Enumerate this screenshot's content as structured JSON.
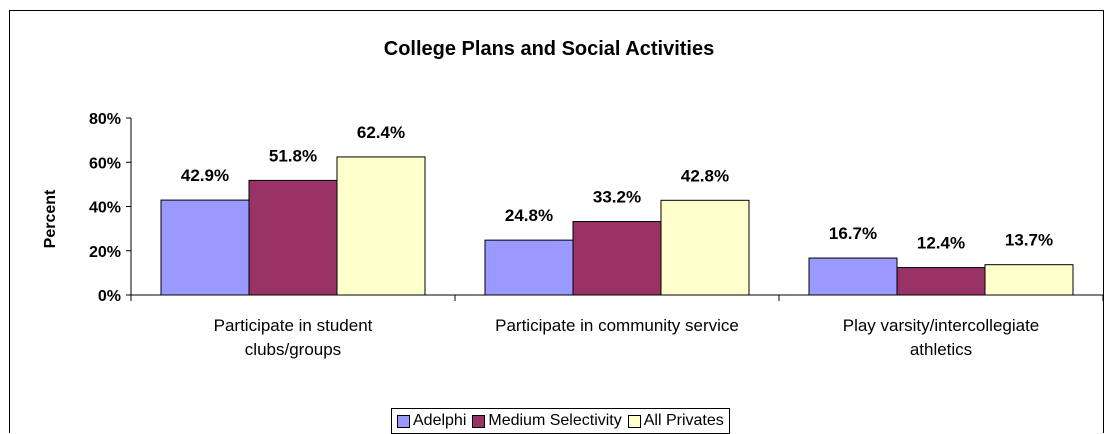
{
  "chart_data": {
    "type": "bar",
    "title": "College Plans and Social Activities",
    "ylabel": "Percent",
    "xlabel": "",
    "ylim": [
      0,
      80
    ],
    "yticks": [
      "0%",
      "20%",
      "40%",
      "60%",
      "80%"
    ],
    "categories": [
      [
        "Participate in student",
        "clubs/groups"
      ],
      [
        "Participate in community service"
      ],
      [
        "Play varsity/intercollegiate",
        "athletics"
      ]
    ],
    "series": [
      {
        "name": "Adelphi",
        "color": "#9999ff",
        "values": [
          42.9,
          24.8,
          16.7
        ],
        "labels": [
          "42.9%",
          "24.8%",
          "16.7%"
        ]
      },
      {
        "name": "Medium Selectivity",
        "color": "#993366",
        "values": [
          51.8,
          33.2,
          12.4
        ],
        "labels": [
          "51.8%",
          "33.2%",
          "12.4%"
        ]
      },
      {
        "name": "All Privates",
        "color": "#ffffcc",
        "values": [
          62.4,
          42.8,
          13.7
        ],
        "labels": [
          "62.4%",
          "42.8%",
          "13.7%"
        ]
      }
    ],
    "grid": false,
    "legend_position": "bottom"
  }
}
